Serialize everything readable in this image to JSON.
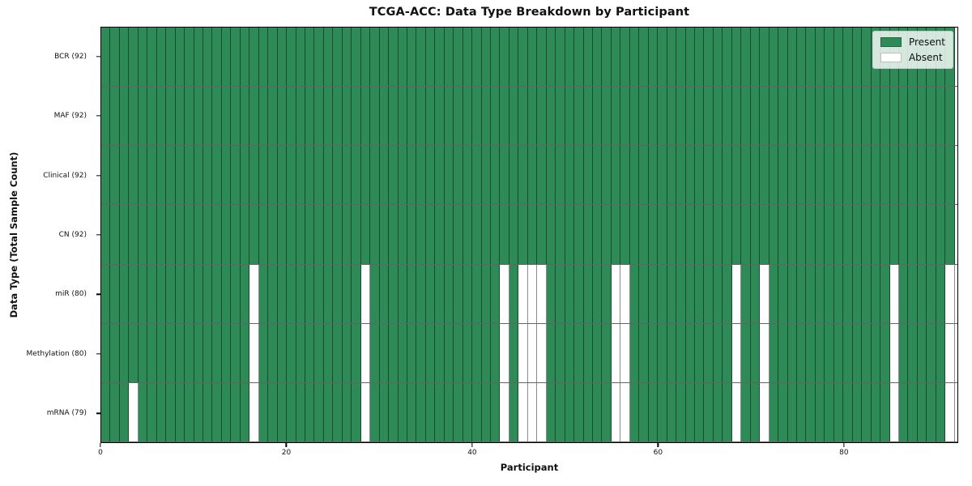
{
  "chart_data": {
    "type": "heatmap",
    "title": "TCGA-ACC: Data Type Breakdown by Participant",
    "xlabel": "Participant",
    "ylabel": "Data Type (Total Sample Count)",
    "n_participants": 92,
    "xlim": [
      0,
      92.3
    ],
    "x_ticks": [
      0,
      20,
      40,
      60,
      80
    ],
    "grid": "per-cell vertical separators and row divider lines",
    "rows": [
      {
        "label": "BCR (92)",
        "present_count": 92,
        "absent_participants": []
      },
      {
        "label": "MAF (92)",
        "present_count": 92,
        "absent_participants": []
      },
      {
        "label": "Clinical (92)",
        "present_count": 92,
        "absent_participants": []
      },
      {
        "label": "CN (92)",
        "present_count": 92,
        "absent_participants": []
      },
      {
        "label": "miR (80)",
        "present_count": 80,
        "absent_participants": [
          16,
          28,
          43,
          45,
          46,
          47,
          55,
          56,
          68,
          71,
          85,
          91
        ]
      },
      {
        "label": "Methylation (80)",
        "present_count": 80,
        "absent_participants": [
          16,
          28,
          43,
          45,
          46,
          47,
          55,
          56,
          68,
          71,
          85,
          91
        ]
      },
      {
        "label": "mRNA (79)",
        "present_count": 79,
        "absent_participants": [
          3,
          16,
          28,
          43,
          45,
          46,
          47,
          55,
          56,
          68,
          71,
          85,
          91
        ]
      }
    ],
    "legend": {
      "position": "upper right",
      "items": [
        {
          "label": "Present",
          "color": "#2e8b57"
        },
        {
          "label": "Absent",
          "color": "#ffffff"
        }
      ]
    },
    "colors": {
      "present": "#2e8b57",
      "absent": "#ffffff",
      "frame": "#000000"
    }
  }
}
